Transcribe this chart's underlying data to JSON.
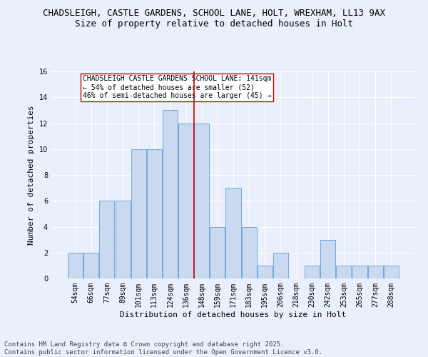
{
  "title_line1": "CHADSLEIGH, CASTLE GARDENS, SCHOOL LANE, HOLT, WREXHAM, LL13 9AX",
  "title_line2": "Size of property relative to detached houses in Holt",
  "xlabel": "Distribution of detached houses by size in Holt",
  "ylabel": "Number of detached properties",
  "bar_labels": [
    "54sqm",
    "66sqm",
    "77sqm",
    "89sqm",
    "101sqm",
    "113sqm",
    "124sqm",
    "136sqm",
    "148sqm",
    "159sqm",
    "171sqm",
    "183sqm",
    "195sqm",
    "206sqm",
    "218sqm",
    "230sqm",
    "242sqm",
    "253sqm",
    "265sqm",
    "277sqm",
    "288sqm"
  ],
  "bar_values": [
    2,
    2,
    6,
    6,
    10,
    10,
    13,
    12,
    12,
    4,
    7,
    4,
    1,
    2,
    0,
    1,
    3,
    1,
    1,
    1,
    1
  ],
  "bar_color": "#c9d9f0",
  "bar_edgecolor": "#6fa8dc",
  "vline_x": 7.5,
  "vline_color": "#cc0000",
  "annotation_text": "CHADSLEIGH CASTLE GARDENS SCHOOL LANE: 141sqm\n← 54% of detached houses are smaller (52)\n46% of semi-detached houses are larger (45) →",
  "annotation_box_edgecolor": "#cc0000",
  "annotation_box_facecolor": "#ffffff",
  "ylim": [
    0,
    16
  ],
  "yticks": [
    0,
    2,
    4,
    6,
    8,
    10,
    12,
    14,
    16
  ],
  "bg_color": "#eaf0fb",
  "grid_color": "#ffffff",
  "footer_text": "Contains HM Land Registry data © Crown copyright and database right 2025.\nContains public sector information licensed under the Open Government Licence v3.0.",
  "title_fontsize": 9,
  "subtitle_fontsize": 9,
  "axis_label_fontsize": 8,
  "tick_fontsize": 7,
  "annotation_fontsize": 7,
  "footer_fontsize": 6.5
}
